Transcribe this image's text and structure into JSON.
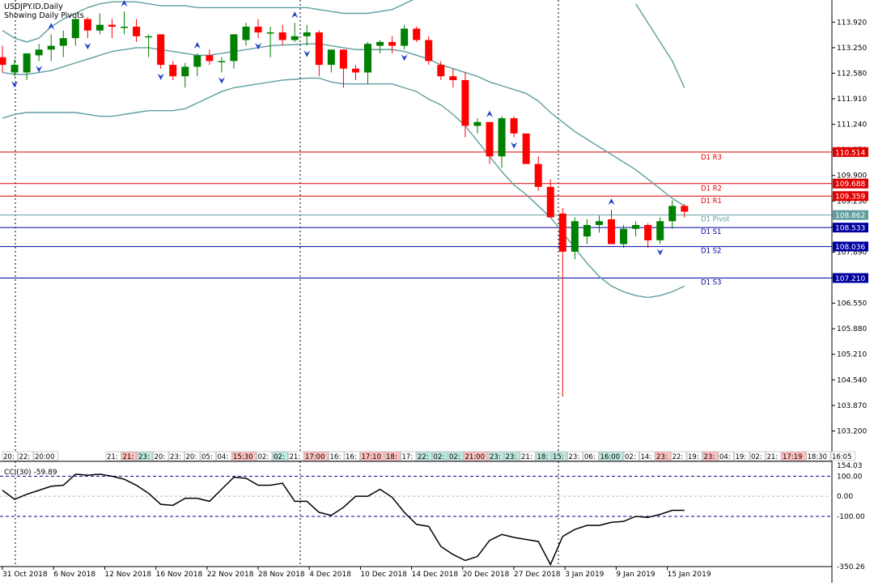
{
  "header": {
    "symbol": "USDJPY.ID,Daily",
    "subtitle": "Showing Daily Pivots"
  },
  "colors": {
    "up": "#008000",
    "down": "#ff0000",
    "band": "#5f9ea0",
    "resistance": "#e00000",
    "support": "#0000a0",
    "pivot": "#5f9ea0"
  },
  "chart_data": {
    "type": "candlestick",
    "ylim": [
      102.7,
      114.5
    ],
    "y_ticks": [
      "113.920",
      "113.250",
      "112.580",
      "111.910",
      "111.240",
      "110.570",
      "109.900",
      "109.230",
      "108.560",
      "107.890",
      "107.220",
      "106.550",
      "105.880",
      "105.210",
      "104.540",
      "103.870",
      "103.200"
    ],
    "x_ticks": [
      "31 Oct 2018",
      "6 Nov 2018",
      "12 Nov 2018",
      "16 Nov 2018",
      "22 Nov 2018",
      "28 Nov 2018",
      "4 Dec 2018",
      "10 Dec 2018",
      "14 Dec 2018",
      "20 Dec 2018",
      "27 Dec 2018",
      "3 Jan 2019",
      "9 Jan 2019",
      "15 Jan 2019"
    ],
    "pivots": [
      {
        "name": "D1 R3",
        "value": 110.514,
        "label": "110.514",
        "kind": "resistance"
      },
      {
        "name": "D1 R2",
        "value": 109.688,
        "label": "109.688",
        "kind": "resistance"
      },
      {
        "name": "D1 R1",
        "value": 109.359,
        "label": "109.359",
        "kind": "resistance"
      },
      {
        "name": "D1 Pivot",
        "value": 108.862,
        "label": "108.862",
        "kind": "pivot"
      },
      {
        "name": "D1 S1",
        "value": 108.533,
        "label": "108.533",
        "kind": "support"
      },
      {
        "name": "D1 S2",
        "value": 108.036,
        "label": "108.036",
        "kind": "support"
      },
      {
        "name": "D1 S3",
        "value": 107.21,
        "label": "107.210",
        "kind": "support"
      }
    ],
    "candles": [
      {
        "o": 113.0,
        "h": 113.3,
        "l": 112.6,
        "c": 112.8
      },
      {
        "o": 112.6,
        "h": 112.95,
        "l": 112.5,
        "c": 112.8
      },
      {
        "o": 112.6,
        "h": 113.1,
        "l": 112.4,
        "c": 113.1
      },
      {
        "o": 113.05,
        "h": 113.35,
        "l": 112.9,
        "c": 113.2
      },
      {
        "o": 113.2,
        "h": 113.6,
        "l": 112.9,
        "c": 113.3
      },
      {
        "o": 113.3,
        "h": 113.7,
        "l": 113.0,
        "c": 113.5
      },
      {
        "o": 113.5,
        "h": 114.05,
        "l": 113.3,
        "c": 114.0
      },
      {
        "o": 114.0,
        "h": 114.05,
        "l": 113.5,
        "c": 113.7
      },
      {
        "o": 113.7,
        "h": 114.15,
        "l": 113.6,
        "c": 113.85
      },
      {
        "o": 113.85,
        "h": 114.0,
        "l": 113.5,
        "c": 113.8
      },
      {
        "o": 113.8,
        "h": 114.2,
        "l": 113.6,
        "c": 113.8
      },
      {
        "o": 113.8,
        "h": 114.0,
        "l": 113.4,
        "c": 113.55
      },
      {
        "o": 113.55,
        "h": 113.6,
        "l": 113.0,
        "c": 113.55
      },
      {
        "o": 113.6,
        "h": 113.6,
        "l": 112.7,
        "c": 112.8
      },
      {
        "o": 112.8,
        "h": 112.9,
        "l": 112.4,
        "c": 112.5
      },
      {
        "o": 112.5,
        "h": 112.85,
        "l": 112.2,
        "c": 112.75
      },
      {
        "o": 112.75,
        "h": 113.1,
        "l": 112.5,
        "c": 113.05
      },
      {
        "o": 113.05,
        "h": 113.2,
        "l": 112.8,
        "c": 112.9
      },
      {
        "o": 112.9,
        "h": 113.0,
        "l": 112.6,
        "c": 112.9
      },
      {
        "o": 112.9,
        "h": 113.6,
        "l": 112.7,
        "c": 113.6
      },
      {
        "o": 113.45,
        "h": 113.9,
        "l": 113.3,
        "c": 113.8
      },
      {
        "o": 113.8,
        "h": 114.0,
        "l": 113.5,
        "c": 113.65
      },
      {
        "o": 113.65,
        "h": 113.8,
        "l": 113.0,
        "c": 113.65
      },
      {
        "o": 113.65,
        "h": 113.85,
        "l": 113.3,
        "c": 113.45
      },
      {
        "o": 113.45,
        "h": 113.9,
        "l": 113.4,
        "c": 113.55
      },
      {
        "o": 113.55,
        "h": 113.85,
        "l": 113.3,
        "c": 113.65
      },
      {
        "o": 113.65,
        "h": 113.7,
        "l": 112.5,
        "c": 112.8
      },
      {
        "o": 112.8,
        "h": 113.2,
        "l": 112.6,
        "c": 113.2
      },
      {
        "o": 113.2,
        "h": 113.2,
        "l": 112.2,
        "c": 112.7
      },
      {
        "o": 112.7,
        "h": 112.8,
        "l": 112.4,
        "c": 112.6
      },
      {
        "o": 112.6,
        "h": 113.4,
        "l": 112.3,
        "c": 113.35
      },
      {
        "o": 113.3,
        "h": 113.45,
        "l": 113.1,
        "c": 113.4
      },
      {
        "o": 113.4,
        "h": 113.55,
        "l": 113.1,
        "c": 113.3
      },
      {
        "o": 113.3,
        "h": 113.85,
        "l": 113.2,
        "c": 113.75
      },
      {
        "o": 113.75,
        "h": 113.8,
        "l": 113.4,
        "c": 113.45
      },
      {
        "o": 113.45,
        "h": 113.55,
        "l": 112.8,
        "c": 112.9
      },
      {
        "o": 112.8,
        "h": 112.9,
        "l": 112.4,
        "c": 112.5
      },
      {
        "o": 112.5,
        "h": 112.7,
        "l": 112.2,
        "c": 112.4
      },
      {
        "o": 112.4,
        "h": 112.6,
        "l": 110.9,
        "c": 111.2
      },
      {
        "o": 111.2,
        "h": 111.4,
        "l": 111.0,
        "c": 111.3
      },
      {
        "o": 111.3,
        "h": 111.3,
        "l": 110.2,
        "c": 110.4
      },
      {
        "o": 110.4,
        "h": 111.45,
        "l": 110.1,
        "c": 111.4
      },
      {
        "o": 111.4,
        "h": 111.45,
        "l": 110.9,
        "c": 111.0
      },
      {
        "o": 111.0,
        "h": 111.0,
        "l": 110.2,
        "c": 110.2
      },
      {
        "o": 110.2,
        "h": 110.4,
        "l": 109.5,
        "c": 109.6
      },
      {
        "o": 109.6,
        "h": 109.8,
        "l": 108.8,
        "c": 108.8
      },
      {
        "o": 108.9,
        "h": 109.05,
        "l": 104.1,
        "c": 107.9
      },
      {
        "o": 107.9,
        "h": 108.8,
        "l": 107.7,
        "c": 108.7
      },
      {
        "o": 108.3,
        "h": 108.75,
        "l": 108.1,
        "c": 108.6
      },
      {
        "o": 108.6,
        "h": 108.85,
        "l": 108.4,
        "c": 108.7
      },
      {
        "o": 108.75,
        "h": 109.0,
        "l": 108.1,
        "c": 108.1
      },
      {
        "o": 108.1,
        "h": 108.6,
        "l": 108.0,
        "c": 108.5
      },
      {
        "o": 108.5,
        "h": 108.7,
        "l": 108.3,
        "c": 108.6
      },
      {
        "o": 108.6,
        "h": 108.65,
        "l": 108.0,
        "c": 108.2
      },
      {
        "o": 108.2,
        "h": 108.8,
        "l": 108.1,
        "c": 108.7
      },
      {
        "o": 108.7,
        "h": 109.25,
        "l": 108.5,
        "c": 109.1
      },
      {
        "o": 109.1,
        "h": 109.15,
        "l": 108.8,
        "c": 108.95
      }
    ],
    "bb_upper": [
      113.7,
      113.5,
      113.4,
      113.5,
      113.8,
      114.0,
      114.15,
      114.3,
      114.4,
      114.45,
      114.45,
      114.45,
      114.4,
      114.35,
      114.35,
      114.35,
      114.3,
      114.3,
      114.3,
      114.3,
      114.3,
      114.3,
      114.3,
      114.3,
      114.3,
      114.3,
      114.25,
      114.2,
      114.15,
      114.15,
      114.15,
      114.2,
      114.25,
      114.4,
      114.55,
      114.7,
      114.85,
      115.0,
      null,
      null,
      null,
      null,
      null,
      null,
      null,
      null,
      null,
      null,
      null,
      null,
      null,
      null,
      114.4,
      113.9,
      113.4,
      112.9,
      112.2
    ],
    "bb_mid": [
      112.6,
      112.55,
      112.55,
      112.6,
      112.65,
      112.75,
      112.85,
      112.95,
      113.05,
      113.15,
      113.2,
      113.25,
      113.25,
      113.2,
      113.15,
      113.1,
      113.05,
      113.05,
      113.1,
      113.15,
      113.2,
      113.25,
      113.3,
      113.32,
      113.33,
      113.35,
      113.35,
      113.3,
      113.25,
      113.2,
      113.2,
      113.2,
      113.2,
      113.15,
      113.05,
      112.95,
      112.8,
      112.7,
      112.6,
      112.5,
      112.35,
      112.25,
      112.15,
      112.05,
      111.85,
      111.55,
      111.3,
      111.05,
      110.85,
      110.65,
      110.45,
      110.25,
      110.05,
      109.8,
      109.55,
      109.3,
      109.1
    ],
    "bb_lower": [
      111.4,
      111.5,
      111.55,
      111.55,
      111.55,
      111.55,
      111.55,
      111.5,
      111.45,
      111.45,
      111.5,
      111.55,
      111.6,
      111.6,
      111.6,
      111.65,
      111.8,
      111.95,
      112.1,
      112.2,
      112.25,
      112.3,
      112.35,
      112.4,
      112.42,
      112.45,
      112.45,
      112.35,
      112.3,
      112.3,
      112.3,
      112.3,
      112.3,
      112.2,
      112.1,
      111.9,
      111.75,
      111.5,
      111.2,
      110.8,
      110.4,
      110.0,
      109.65,
      109.4,
      109.1,
      108.8,
      108.4,
      108.0,
      107.6,
      107.25,
      107.0,
      106.85,
      106.75,
      106.7,
      106.75,
      106.85,
      107.0
    ],
    "arrows_up": [
      4,
      10,
      16,
      24,
      40,
      50
    ],
    "arrows_down": [
      1,
      3,
      7,
      13,
      18,
      21,
      25,
      33,
      42,
      54
    ],
    "time_labels": [
      {
        "t": "20:",
        "hl": ""
      },
      {
        "t": "22:",
        "hl": ""
      },
      {
        "t": "20:00",
        "hl": ""
      },
      {
        "t": "21:",
        "hl": ""
      },
      {
        "t": "21:",
        "hl": "r"
      },
      {
        "t": "23:",
        "hl": "g"
      },
      {
        "t": "20:",
        "hl": ""
      },
      {
        "t": "23:",
        "hl": ""
      },
      {
        "t": "20:",
        "hl": ""
      },
      {
        "t": "05:",
        "hl": ""
      },
      {
        "t": "04:",
        "hl": ""
      },
      {
        "t": "15:30",
        "hl": "r"
      },
      {
        "t": "02:",
        "hl": ""
      },
      {
        "t": "02:",
        "hl": "g"
      },
      {
        "t": "21:",
        "hl": ""
      },
      {
        "t": "17:00",
        "hl": "r"
      },
      {
        "t": "16:",
        "hl": ""
      },
      {
        "t": "16:",
        "hl": ""
      },
      {
        "t": "17:10",
        "hl": "r"
      },
      {
        "t": "18:",
        "hl": "r"
      },
      {
        "t": "17:",
        "hl": ""
      },
      {
        "t": "22:",
        "hl": "g"
      },
      {
        "t": "02:",
        "hl": "g"
      },
      {
        "t": "02:",
        "hl": "g"
      },
      {
        "t": "21:00",
        "hl": "r"
      },
      {
        "t": "23:",
        "hl": "g"
      },
      {
        "t": "23:",
        "hl": "g"
      },
      {
        "t": "21:",
        "hl": ""
      },
      {
        "t": "18:",
        "hl": "g"
      },
      {
        "t": "15:",
        "hl": "g"
      },
      {
        "t": "23:",
        "hl": ""
      },
      {
        "t": "06:",
        "hl": ""
      },
      {
        "t": "16:00",
        "hl": "g"
      },
      {
        "t": "02:",
        "hl": ""
      },
      {
        "t": "14:",
        "hl": ""
      },
      {
        "t": "23:",
        "hl": "r"
      },
      {
        "t": "22:",
        "hl": ""
      },
      {
        "t": "19:",
        "hl": ""
      },
      {
        "t": "23:",
        "hl": "r"
      },
      {
        "t": "04:",
        "hl": ""
      },
      {
        "t": "19:",
        "hl": ""
      },
      {
        "t": "02:",
        "hl": ""
      },
      {
        "t": "21:",
        "hl": ""
      },
      {
        "t": "17:19",
        "hl": "r"
      },
      {
        "t": "18:30",
        "hl": ""
      },
      {
        "t": "16:05",
        "hl": ""
      }
    ],
    "cci": {
      "label": "CCI(30) -59.89",
      "ylim": [
        -350.25,
        154.03
      ],
      "ticks": [
        "154.03",
        "100.00",
        "0.00",
        "-100.00",
        "-350.26"
      ],
      "values": [
        30,
        -15,
        10,
        30,
        50,
        55,
        110,
        105,
        110,
        100,
        85,
        55,
        15,
        -40,
        -45,
        -10,
        -10,
        -25,
        35,
        95,
        90,
        55,
        55,
        65,
        -25,
        -25,
        -80,
        -95,
        -55,
        0,
        0,
        35,
        -5,
        -80,
        -140,
        -150,
        -250,
        -290,
        -320,
        -300,
        -220,
        -190,
        -205,
        -215,
        -225,
        -340,
        -200,
        -165,
        -145,
        -145,
        -130,
        -125,
        -100,
        -105,
        -90,
        -70,
        -70
      ]
    }
  }
}
